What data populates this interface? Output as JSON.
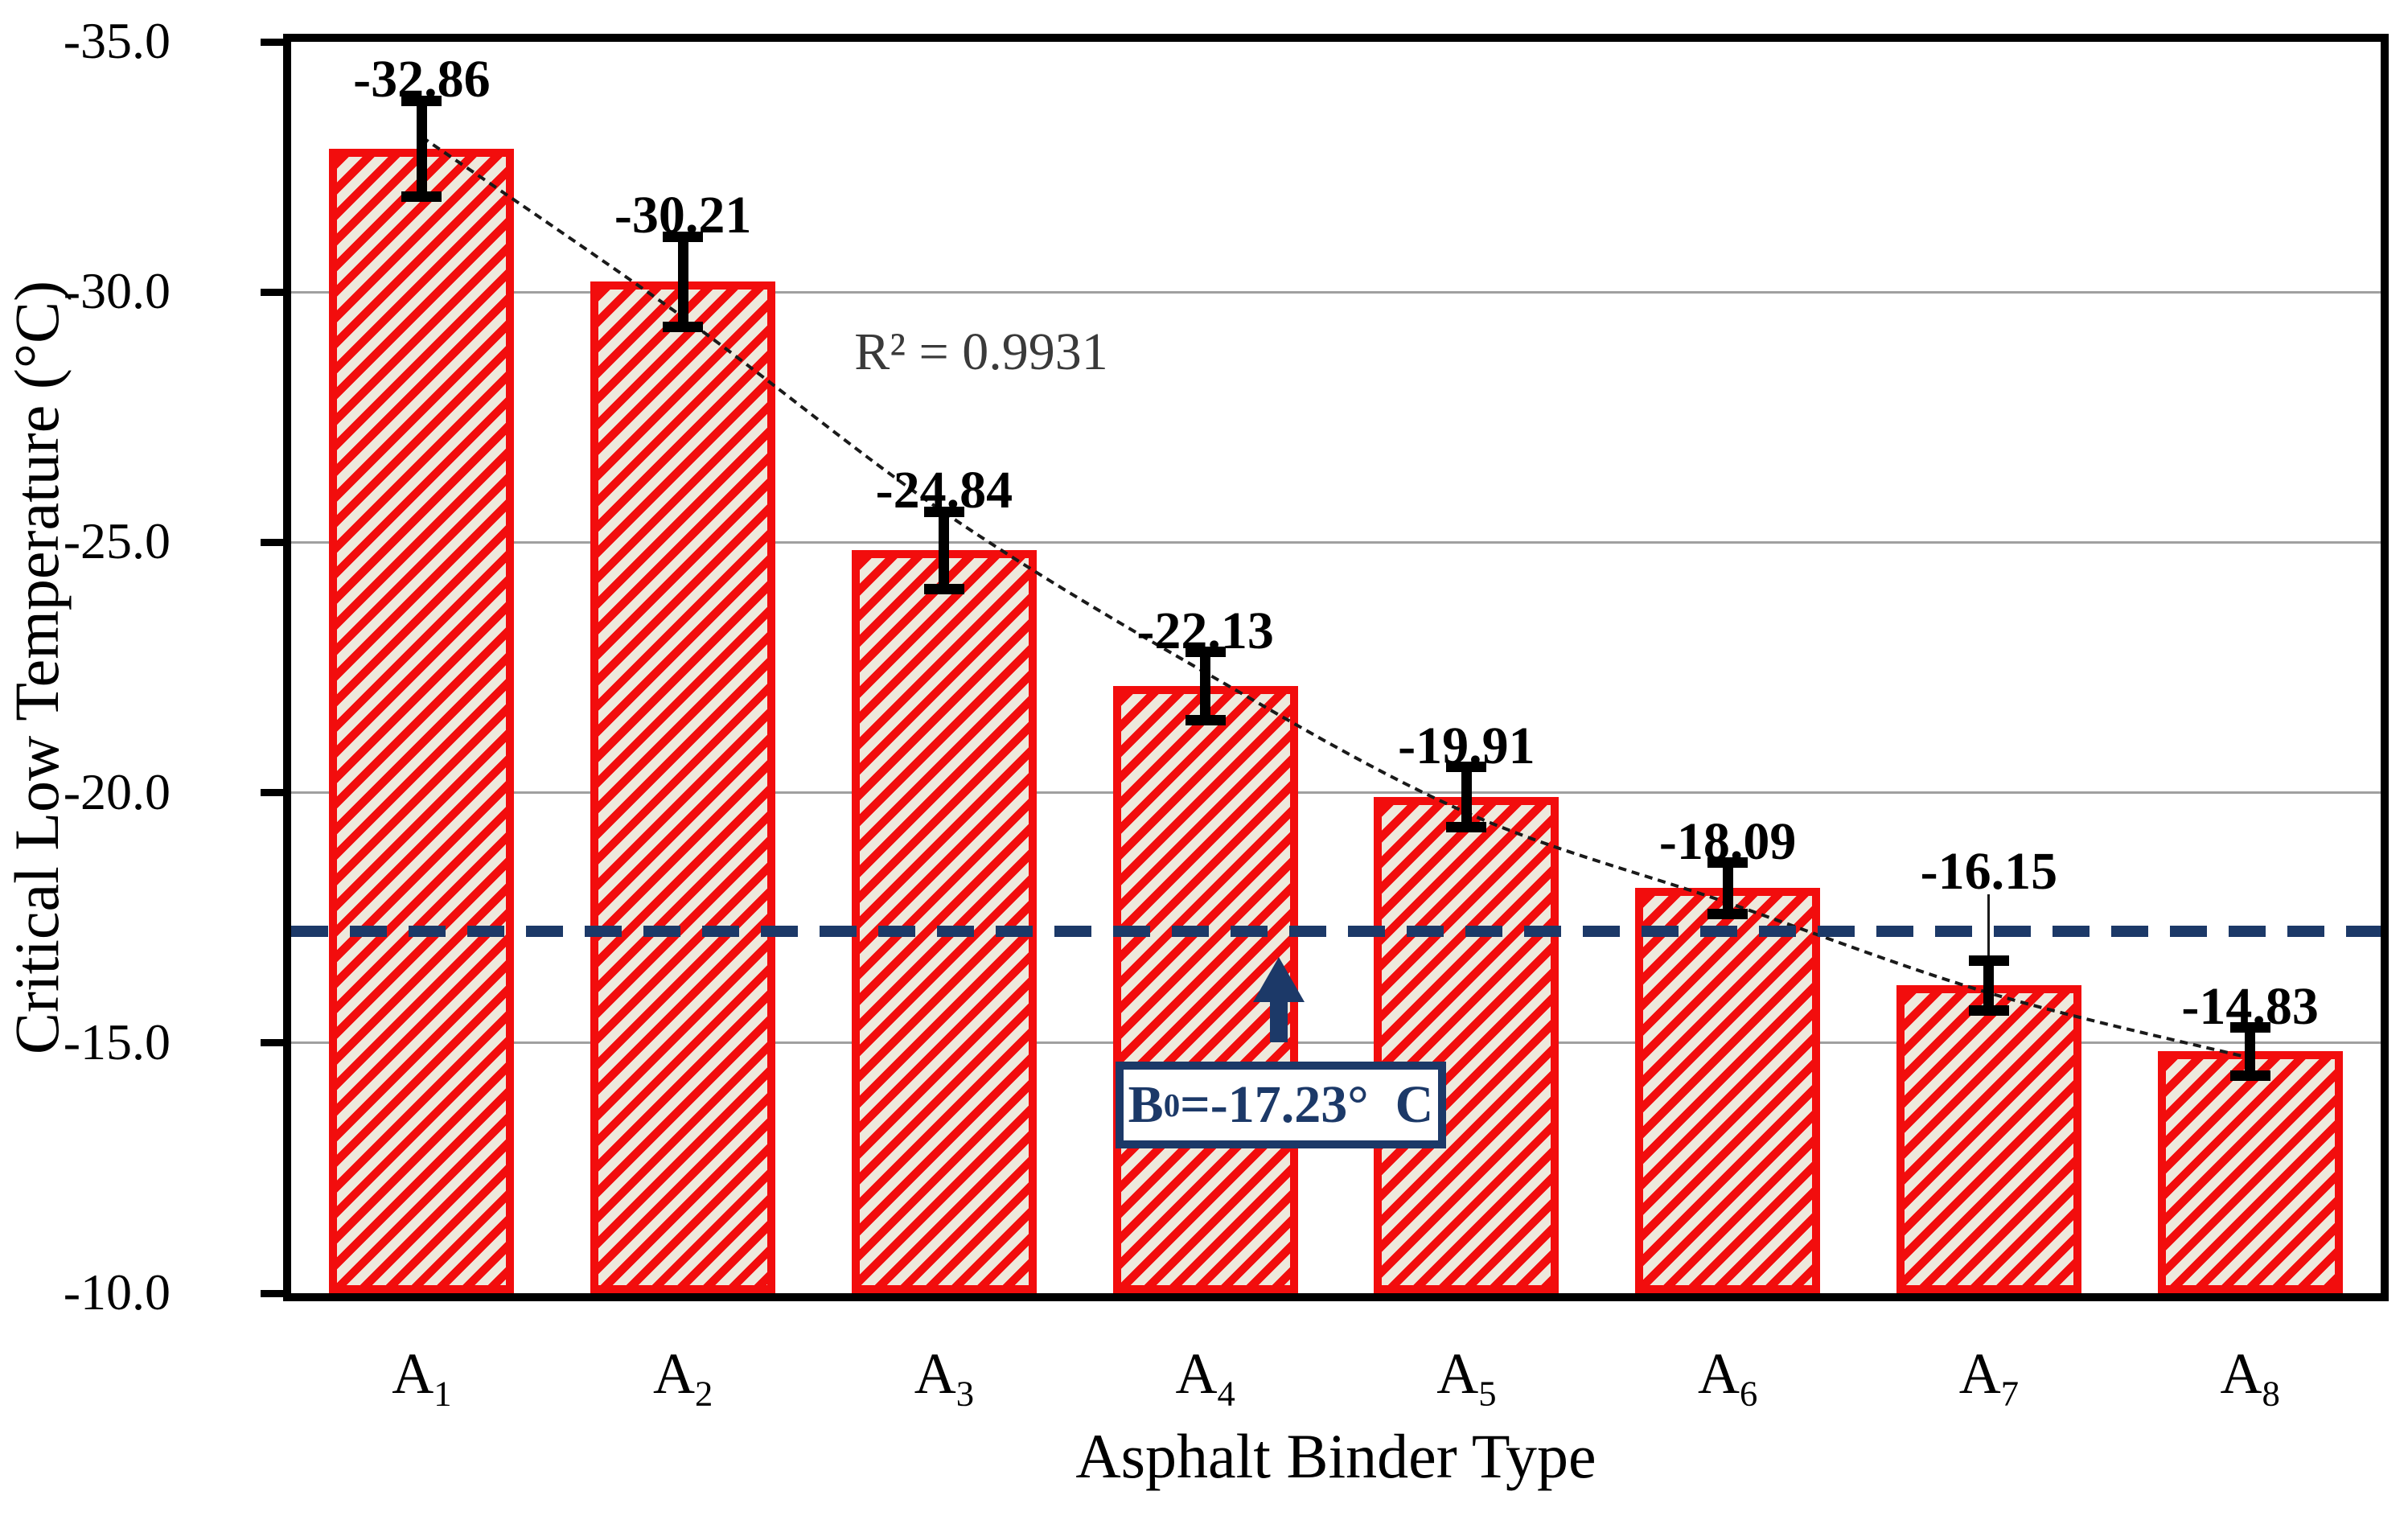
{
  "chart_data": {
    "type": "bar",
    "title": "",
    "xlabel": "Asphalt Binder Type",
    "ylabel": "Critical Low Temperature (°C)",
    "categories": [
      {
        "base": "A",
        "sub": "1"
      },
      {
        "base": "A",
        "sub": "2"
      },
      {
        "base": "A",
        "sub": "3"
      },
      {
        "base": "A",
        "sub": "4"
      },
      {
        "base": "A",
        "sub": "5"
      },
      {
        "base": "A",
        "sub": "6"
      },
      {
        "base": "A",
        "sub": "7"
      },
      {
        "base": "A",
        "sub": "8"
      }
    ],
    "values": [
      -32.86,
      -30.21,
      -24.84,
      -22.13,
      -19.91,
      -18.09,
      -16.15,
      -14.83
    ],
    "value_labels": [
      "-32.86",
      "-30.21",
      "-24.84",
      "-22.13",
      "-19.91",
      "-18.09",
      "-16.15",
      "-14.83"
    ],
    "errors": [
      0.96,
      0.9,
      0.77,
      0.68,
      0.6,
      0.51,
      0.5,
      0.48
    ],
    "y_axis": {
      "top": -35.0,
      "bottom": -10.0,
      "tick_step": 5,
      "tick_values": [
        -35,
        -30,
        -25,
        -20,
        -15,
        -10
      ],
      "tick_labels": [
        "-35.0",
        "-30.0",
        "-25.0",
        "-20.0",
        "-15.0",
        "-10.0"
      ],
      "inverted": true,
      "grid": true
    },
    "trendline": {
      "r2_label": "R² = 0.9931",
      "values": [
        -33.1,
        -29.5,
        -25.6,
        -22.4,
        -19.6,
        -17.8,
        -16.0,
        -14.7
      ]
    },
    "reference_line": {
      "value": -17.23,
      "style": "dashed"
    },
    "annotation": {
      "base": "B",
      "sub": "0",
      "rest": "=-17.23° C"
    },
    "colors": {
      "bar_stripe": "#f20d0d",
      "bar_fill_bg": "#eee9dd",
      "bar_border": "#f20d0d",
      "navy": "#1c3968",
      "grid": "#a0a0a0",
      "axis": "#000000",
      "trend": "#1a1a1a",
      "text": "#000000",
      "r2_text": "#3a3a3a"
    },
    "legend": null
  }
}
